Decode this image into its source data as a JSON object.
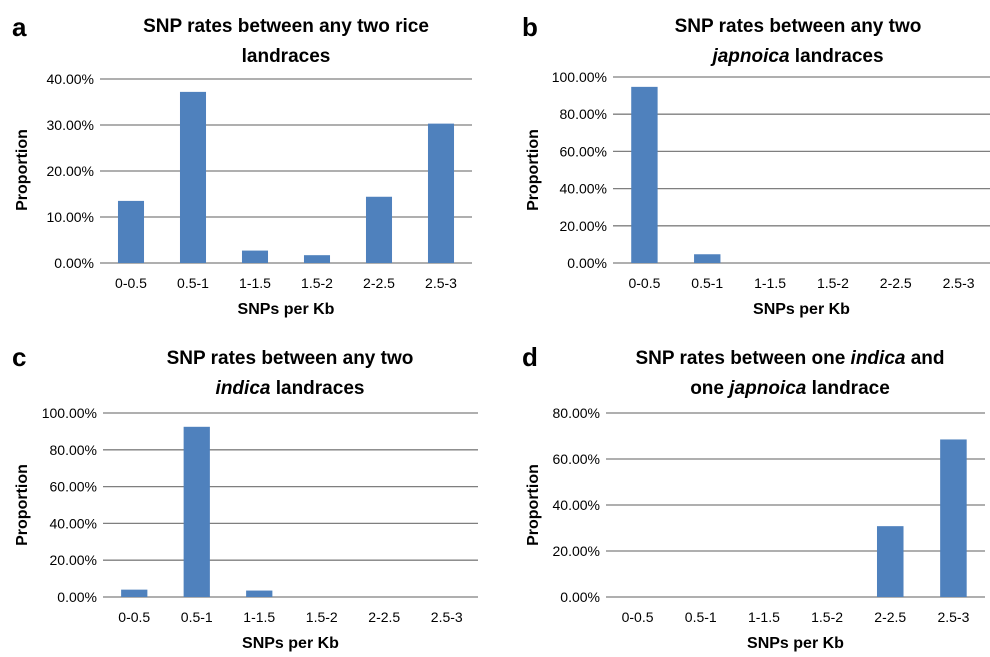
{
  "colors": {
    "bar": "#4f81bd",
    "grid": "#7f7f7f"
  },
  "chart_data": [
    {
      "panel": "a",
      "type": "bar",
      "title_lines": [
        [
          {
            "text": "SNP rates between any two rice",
            "italic": false
          }
        ],
        [
          {
            "text": "landraces",
            "italic": false
          }
        ]
      ],
      "categories": [
        "0-0.5",
        "0.5-1",
        "1-1.5",
        "1.5-2",
        "2-2.5",
        "2.5-3"
      ],
      "values": [
        13.5,
        37.2,
        2.7,
        1.7,
        14.4,
        30.3
      ],
      "yticks": [
        "0.00%",
        "10.00%",
        "20.00%",
        "30.00%",
        "40.00%"
      ],
      "ylim": [
        0,
        40
      ],
      "xlabel": "SNPs per Kb",
      "ylabel": "Proportion",
      "grid": true
    },
    {
      "panel": "b",
      "type": "bar",
      "title_lines": [
        [
          {
            "text": "SNP rates between any two",
            "italic": false
          }
        ],
        [
          {
            "text": "japnoica",
            "italic": true
          },
          {
            "text": " landraces",
            "italic": false
          }
        ]
      ],
      "categories": [
        "0-0.5",
        "0.5-1",
        "1-1.5",
        "1.5-2",
        "2-2.5",
        "2.5-3"
      ],
      "values": [
        94.7,
        4.7,
        0,
        0,
        0,
        0
      ],
      "yticks": [
        "0.00%",
        "20.00%",
        "40.00%",
        "60.00%",
        "80.00%",
        "100.00%"
      ],
      "ylim": [
        0,
        100
      ],
      "xlabel": "SNPs per Kb",
      "ylabel": "Proportion",
      "grid": true
    },
    {
      "panel": "c",
      "type": "bar",
      "title_lines": [
        [
          {
            "text": "SNP rates between any two",
            "italic": false
          }
        ],
        [
          {
            "text": "indica",
            "italic": true
          },
          {
            "text": " landraces",
            "italic": false
          }
        ]
      ],
      "categories": [
        "0-0.5",
        "0.5-1",
        "1-1.5",
        "1.5-2",
        "2-2.5",
        "2.5-3"
      ],
      "values": [
        4.0,
        92.5,
        3.5,
        0,
        0,
        0
      ],
      "yticks": [
        "0.00%",
        "20.00%",
        "40.00%",
        "60.00%",
        "80.00%",
        "100.00%"
      ],
      "ylim": [
        0,
        100
      ],
      "xlabel": "SNPs per Kb",
      "ylabel": "Proportion",
      "grid": true
    },
    {
      "panel": "d",
      "type": "bar",
      "title_lines": [
        [
          {
            "text": "SNP rates between one ",
            "italic": false
          },
          {
            "text": "indica",
            "italic": true
          },
          {
            "text": " and",
            "italic": false
          }
        ],
        [
          {
            "text": "one ",
            "italic": false
          },
          {
            "text": "japnoica",
            "italic": true
          },
          {
            "text": " landrace",
            "italic": false
          }
        ]
      ],
      "categories": [
        "0-0.5",
        "0.5-1",
        "1-1.5",
        "1.5-2",
        "2-2.5",
        "2.5-3"
      ],
      "values": [
        0,
        0,
        0,
        0,
        30.8,
        68.5
      ],
      "yticks": [
        "0.00%",
        "20.00%",
        "40.00%",
        "60.00%",
        "80.00%"
      ],
      "ylim": [
        0,
        80
      ],
      "xlabel": "SNPs per Kb",
      "ylabel": "Proportion",
      "grid": true
    }
  ]
}
